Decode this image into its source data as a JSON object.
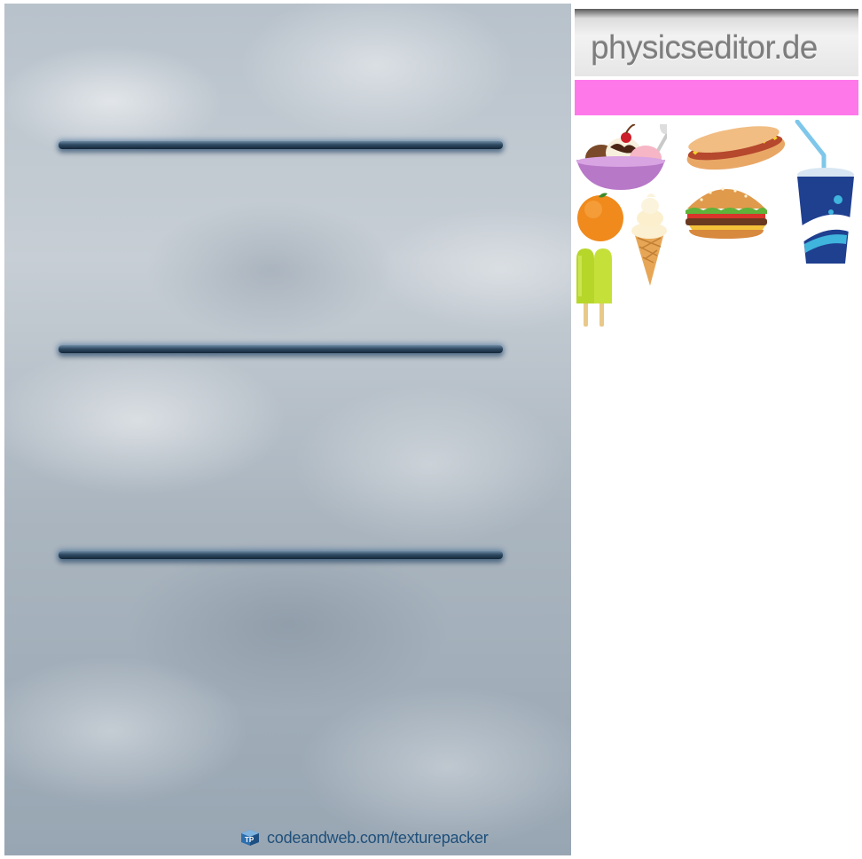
{
  "background_sheet": {
    "shelves": [
      "shelf",
      "shelf",
      "shelf"
    ],
    "credit": {
      "text": "codeandweb.com/texturepacker",
      "icon": "texturepacker-cube-icon",
      "color": "#1f4f7a"
    }
  },
  "sprite_sheet": {
    "logo": {
      "text": "physicseditor.de"
    },
    "accent_color": "#ff78ea",
    "sprites": [
      "ice-cream-sundae",
      "hotdog",
      "soda-cup",
      "orange",
      "ice-cream-cone",
      "hamburger",
      "popsicle"
    ]
  }
}
